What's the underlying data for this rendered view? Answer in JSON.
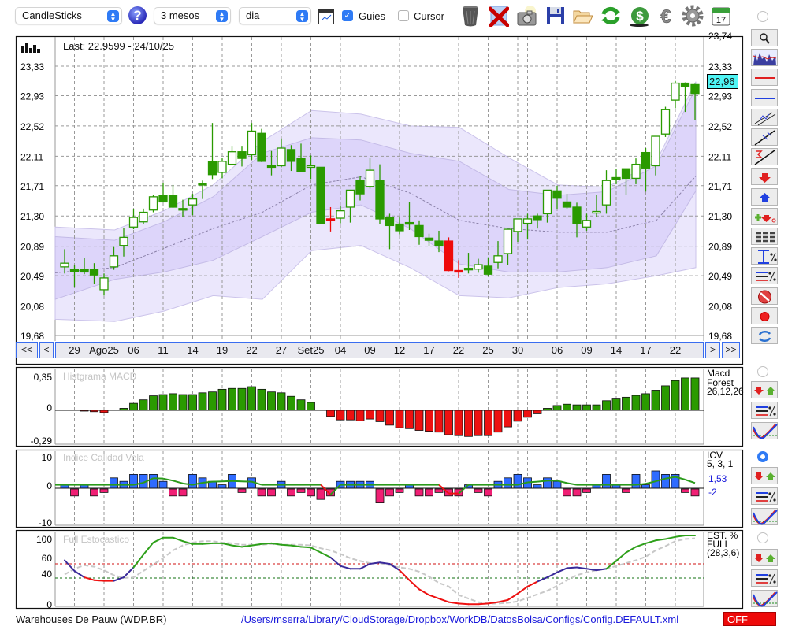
{
  "toolbar": {
    "chart_type": "CandleSticks",
    "period": "3 mesos",
    "interval": "dia",
    "guides_label": "Guies",
    "guides_checked": true,
    "cursor_label": "Cursor",
    "cursor_checked": false,
    "icons": [
      "help-icon",
      "chart-window-icon",
      "trash-icon",
      "delete-icon",
      "camera-icon",
      "save-icon",
      "folder-open-icon",
      "refresh-icon",
      "dollar-icon",
      "euro-icon",
      "gear-icon",
      "calendar-icon"
    ],
    "calendar_day": "17"
  },
  "main_chart": {
    "last_label": "Last: 22.9599 - 24/10/25",
    "last_price_tag": "22,96",
    "price_labels_left": [
      "23,33",
      "22,93",
      "22,52",
      "22,11",
      "21,71",
      "21,30",
      "20,89",
      "20,49",
      "20,08",
      "19,68"
    ],
    "price_labels_right": [
      "23,74",
      "23,33",
      "22,93",
      "22,52",
      "22,11",
      "21,71",
      "21,30",
      "20,89",
      "20,49",
      "20,08",
      "19,68"
    ],
    "nav": {
      "first": "<<",
      "prev": "<",
      "next": ">",
      "last": ">>"
    }
  },
  "panels": {
    "macd": {
      "title": "Histgrama MACD",
      "name_lines": [
        "Macd",
        "Forest",
        "26,12,26"
      ],
      "axis_labels": [
        "0,35",
        "0",
        "-0,29"
      ]
    },
    "icv": {
      "title": "Indice Calidad Vela",
      "name_lines": [
        "ICV",
        "5, 3, 1"
      ],
      "value_line": "1,53",
      "value_bar": "-2",
      "axis_labels": [
        "10",
        "0",
        "-10"
      ]
    },
    "stoch": {
      "title": "Full Estocastico",
      "name_lines": [
        "EST. %",
        "FULL",
        "(28,3,6)"
      ],
      "axis_labels": [
        "100",
        "60",
        "40",
        "0"
      ]
    }
  },
  "sidebar": {
    "buttons": [
      "zoom-button",
      "chart-thumbnail-button",
      "red-line-button",
      "blue-line-button",
      "channel-button",
      "trendline-button",
      "sigma-trendline-button",
      "sell-arrow-button",
      "buy-arrow-button",
      "add-order-button",
      "lines-menu-button",
      "percent-range-button",
      "percent-lines-button",
      "stop-button",
      "record-button",
      "swap-button"
    ],
    "panel_buttons": [
      "signals-button",
      "percent-lines-button",
      "indicator-curve-button"
    ],
    "active_panel_radio": 2
  },
  "status": {
    "security": "Warehouses De Pauw (WDP.BR)",
    "config_path": "/Users/mserra/Library/CloudStorage/Dropbox/WorkDB/DatosBolsa/Configs/Config.DEFAULT.xml",
    "mode": "OFF"
  },
  "colors": {
    "candle_green": "#2a9a00",
    "candle_red": "#ee0a0a",
    "band_outer": "#ebe7fc",
    "band_inner": "#ddd5fa",
    "macd_pos": "#2a9a00",
    "macd_neg": "#ee1111",
    "icv_pos": "#2f6bff",
    "icv_neg": "#f01f74",
    "icv_line": "#2a9a1a",
    "stoch_hi": "#2ea01a",
    "stoch_mid": "#3a2a9a",
    "stoch_lo": "#ee1111",
    "stoch_signal": "#c8c8c8",
    "accent": "#2f7bf5"
  },
  "chart_data": [
    {
      "type": "candlestick",
      "title": "Last: 22.9599 - 24/10/25",
      "ylim": [
        19.68,
        23.74
      ],
      "yticks": [
        23.33,
        22.93,
        22.52,
        22.11,
        21.71,
        21.3,
        20.89,
        20.49,
        20.08,
        19.68
      ],
      "x_labels": [
        {
          "i": 1,
          "t": "29"
        },
        {
          "i": 4,
          "t": "Ago25"
        },
        {
          "i": 7,
          "t": "06"
        },
        {
          "i": 10,
          "t": "11"
        },
        {
          "i": 13,
          "t": "14"
        },
        {
          "i": 16,
          "t": "19"
        },
        {
          "i": 19,
          "t": "22"
        },
        {
          "i": 22,
          "t": "27"
        },
        {
          "i": 25,
          "t": "Set25"
        },
        {
          "i": 28,
          "t": "04"
        },
        {
          "i": 31,
          "t": "09"
        },
        {
          "i": 34,
          "t": "12"
        },
        {
          "i": 37,
          "t": "17"
        },
        {
          "i": 40,
          "t": "22"
        },
        {
          "i": 43,
          "t": "25"
        },
        {
          "i": 46,
          "t": "30"
        },
        {
          "i": 50,
          "t": "06"
        },
        {
          "i": 53,
          "t": "09"
        },
        {
          "i": 56,
          "t": "14"
        },
        {
          "i": 59,
          "t": "17"
        },
        {
          "i": 62,
          "t": "22"
        }
      ],
      "grid_indices": [
        1,
        4,
        7,
        10,
        13,
        16,
        19,
        22,
        25,
        28,
        31,
        34,
        37,
        40,
        43,
        46,
        47,
        50,
        53,
        56,
        59,
        62
      ],
      "ohlc": [
        [
          20.61,
          20.85,
          20.52,
          20.66
        ],
        [
          20.56,
          20.64,
          20.33,
          20.55
        ],
        [
          20.58,
          20.73,
          20.51,
          20.54
        ],
        [
          20.58,
          20.66,
          20.38,
          20.5
        ],
        [
          20.3,
          20.52,
          20.22,
          20.46
        ],
        [
          20.61,
          20.88,
          20.57,
          20.76
        ],
        [
          20.9,
          21.14,
          20.75,
          21.01
        ],
        [
          21.15,
          21.39,
          21.12,
          21.28
        ],
        [
          21.22,
          21.4,
          21.19,
          21.35
        ],
        [
          21.38,
          21.58,
          21.35,
          21.56
        ],
        [
          21.58,
          21.74,
          21.49,
          21.49
        ],
        [
          21.58,
          21.72,
          21.41,
          21.42
        ],
        [
          21.39,
          21.52,
          21.29,
          21.38
        ],
        [
          21.45,
          21.6,
          21.31,
          21.53
        ],
        [
          21.73,
          21.78,
          21.53,
          21.73
        ],
        [
          22.04,
          22.56,
          21.8,
          21.86
        ],
        [
          21.89,
          22.08,
          21.81,
          22.04
        ],
        [
          22.0,
          22.24,
          21.99,
          22.17
        ],
        [
          22.17,
          22.24,
          21.97,
          22.08
        ],
        [
          22.13,
          22.56,
          22.06,
          22.45
        ],
        [
          22.42,
          22.48,
          22.03,
          22.04
        ],
        [
          21.97,
          22.18,
          21.85,
          21.97
        ],
        [
          21.98,
          22.35,
          21.96,
          22.22
        ],
        [
          22.2,
          22.26,
          21.91,
          22.04
        ],
        [
          22.08,
          22.28,
          21.89,
          21.9
        ],
        [
          21.95,
          22.12,
          21.8,
          21.97
        ],
        [
          21.96,
          21.96,
          21.19,
          21.2
        ],
        [
          21.25,
          21.42,
          21.09,
          21.25
        ],
        [
          21.27,
          21.44,
          21.2,
          21.37
        ],
        [
          21.42,
          21.65,
          21.21,
          21.65
        ],
        [
          21.78,
          21.84,
          21.51,
          21.6
        ],
        [
          21.7,
          22.09,
          21.67,
          21.92
        ],
        [
          21.78,
          22.0,
          21.19,
          21.26
        ],
        [
          21.28,
          21.33,
          20.85,
          21.17
        ],
        [
          21.19,
          21.28,
          21.05,
          21.1
        ],
        [
          21.2,
          21.49,
          21.11,
          21.18
        ],
        [
          21.17,
          21.24,
          20.91,
          21.02
        ],
        [
          21.0,
          21.06,
          20.89,
          20.97
        ],
        [
          20.96,
          21.1,
          20.81,
          20.9
        ],
        [
          20.96,
          21.01,
          20.55,
          20.56
        ],
        [
          20.55,
          20.7,
          20.46,
          20.55
        ],
        [
          20.58,
          20.8,
          20.52,
          20.56
        ],
        [
          20.58,
          20.72,
          20.53,
          20.64
        ],
        [
          20.62,
          20.74,
          20.48,
          20.51
        ],
        [
          20.67,
          20.96,
          20.59,
          20.76
        ],
        [
          20.79,
          21.12,
          20.63,
          21.12
        ],
        [
          21.09,
          21.26,
          20.95,
          21.26
        ],
        [
          21.2,
          21.33,
          20.98,
          21.26
        ],
        [
          21.3,
          21.33,
          21.13,
          21.25
        ],
        [
          21.33,
          21.65,
          21.21,
          21.65
        ],
        [
          21.64,
          21.71,
          21.39,
          21.54
        ],
        [
          21.49,
          21.6,
          21.39,
          21.42
        ],
        [
          21.42,
          21.48,
          21.01,
          21.2
        ],
        [
          21.15,
          21.33,
          21.1,
          21.24
        ],
        [
          21.33,
          21.58,
          21.29,
          21.35
        ],
        [
          21.45,
          21.92,
          21.33,
          21.78
        ],
        [
          21.82,
          21.94,
          21.73,
          21.79
        ],
        [
          21.94,
          21.94,
          21.59,
          21.81
        ],
        [
          21.81,
          22.08,
          21.73,
          22.0
        ],
        [
          22.16,
          22.22,
          21.63,
          21.95
        ],
        [
          21.98,
          22.38,
          21.85,
          22.38
        ],
        [
          22.41,
          22.78,
          22.37,
          22.74
        ],
        [
          22.87,
          23.13,
          22.76,
          23.1
        ],
        [
          23.1,
          23.11,
          22.71,
          23.05
        ],
        [
          23.08,
          23.09,
          22.6,
          22.96
        ]
      ],
      "red_candles": [
        27,
        39,
        40
      ],
      "bands": {
        "index": [
          -1,
          5,
          10,
          15,
          20,
          25,
          30,
          35,
          40,
          45,
          50,
          55,
          60,
          64
        ],
        "outer_upper": [
          21.15,
          21.11,
          21.37,
          21.72,
          22.31,
          22.73,
          22.68,
          22.52,
          22.5,
          22.09,
          21.72,
          21.69,
          22.04,
          23.12
        ],
        "inner_upper": [
          21.02,
          20.97,
          21.22,
          21.56,
          22.15,
          22.36,
          22.33,
          22.15,
          22.04,
          21.66,
          21.58,
          21.63,
          21.98,
          23.03
        ],
        "middle": [
          20.53,
          20.6,
          20.86,
          21.13,
          21.35,
          21.72,
          21.83,
          21.61,
          21.24,
          21.13,
          21.08,
          21.08,
          21.24,
          21.84
        ],
        "inner_lower": [
          20.17,
          20.44,
          20.54,
          20.7,
          21.02,
          21.35,
          21.45,
          21.13,
          20.65,
          20.54,
          20.54,
          20.6,
          20.76,
          21.64
        ],
        "outer_lower": [
          19.9,
          19.87,
          20.01,
          20.22,
          20.17,
          20.83,
          20.9,
          20.6,
          20.22,
          20.19,
          20.33,
          20.38,
          20.49,
          20.6
        ]
      }
    },
    {
      "type": "bar",
      "title": "Histgrama MACD",
      "ylim": [
        -0.29,
        0.35
      ],
      "values": [
        0,
        0,
        -0.005,
        -0.016,
        -0.026,
        0,
        0.023,
        0.08,
        0.12,
        0.166,
        0.18,
        0.19,
        0.18,
        0.18,
        0.2,
        0.21,
        0.24,
        0.25,
        0.25,
        0.27,
        0.24,
        0.21,
        0.2,
        0.16,
        0.12,
        0.09,
        0,
        -0.07,
        -0.11,
        -0.11,
        -0.12,
        -0.1,
        -0.13,
        -0.17,
        -0.2,
        -0.21,
        -0.23,
        -0.24,
        -0.25,
        -0.28,
        -0.29,
        -0.3,
        -0.29,
        -0.29,
        -0.25,
        -0.19,
        -0.125,
        -0.08,
        -0.04,
        0.023,
        0.055,
        0.07,
        0.062,
        0.062,
        0.062,
        0.11,
        0.13,
        0.15,
        0.17,
        0.19,
        0.23,
        0.28,
        0.34,
        0.37,
        0.37
      ]
    },
    {
      "type": "bar",
      "title": "Indice Calidad Vela",
      "ylim": [
        -10,
        10
      ],
      "values": [
        1,
        -2,
        1,
        -2,
        -1,
        3,
        2,
        4,
        4,
        4,
        2,
        -2,
        -2,
        4,
        3,
        2,
        1,
        4,
        -1,
        3,
        -2,
        -2,
        2,
        -2,
        -1,
        -2,
        -3,
        -2,
        2,
        2,
        2,
        2,
        -4,
        -2,
        -1,
        1,
        -2,
        -2,
        -1,
        -2,
        -2,
        1,
        -1,
        -2,
        2,
        3,
        4,
        3,
        1,
        3,
        2,
        -2,
        -2,
        -1,
        1,
        4,
        1,
        -1,
        4,
        1,
        5,
        4,
        4,
        -1,
        -2
      ],
      "line": [
        1,
        1,
        1,
        1,
        1,
        1,
        1,
        1,
        1.6,
        2.9,
        2.8,
        2.2,
        1.4,
        1,
        1.6,
        1.9,
        2,
        2.1,
        2,
        1.9,
        1,
        1,
        1,
        1,
        1,
        1,
        1,
        -1.8,
        1,
        1,
        1,
        1,
        1,
        1,
        1,
        1,
        1,
        1,
        1,
        -1.5,
        -1.5,
        1,
        1,
        1,
        1,
        1,
        1,
        1.7,
        1.9,
        2.2,
        2.2,
        1.5,
        1,
        1,
        1,
        1,
        1,
        1,
        1,
        1.3,
        2,
        2.8,
        3.3,
        2.5,
        1.53
      ]
    },
    {
      "type": "line",
      "title": "Full Estocastico",
      "ylim": [
        0,
        100
      ],
      "levels": [
        60,
        40
      ],
      "series": [
        {
          "name": "%K",
          "values": [
            65,
            50,
            41,
            37,
            36,
            36,
            41,
            55,
            73,
            90,
            97,
            97,
            92,
            88,
            88,
            89,
            89,
            86,
            84,
            86,
            88,
            89,
            87,
            86,
            84,
            83,
            76,
            69,
            57,
            53,
            53,
            60,
            62,
            60,
            51,
            37,
            24,
            16,
            11,
            6,
            4,
            3,
            3,
            4,
            6,
            9,
            18,
            28,
            35,
            41,
            48,
            54,
            55,
            53,
            51,
            53,
            64,
            76,
            84,
            89,
            93,
            95,
            98,
            100,
            100
          ]
        },
        {
          "name": "%D",
          "values": [
            45,
            53,
            58,
            56,
            51,
            44,
            40,
            41,
            50,
            59,
            68,
            79,
            86,
            90,
            92,
            92,
            90,
            89,
            87,
            87,
            87,
            88,
            87,
            87,
            87,
            86,
            82,
            79,
            74,
            68,
            64,
            61,
            61,
            58,
            55,
            53,
            49,
            42,
            33,
            28,
            16,
            11,
            6,
            4,
            4,
            5,
            7,
            12,
            17,
            22,
            29,
            37,
            44,
            48,
            51,
            53,
            57,
            61,
            65,
            70,
            79,
            85,
            92,
            95,
            96
          ]
        }
      ]
    }
  ]
}
